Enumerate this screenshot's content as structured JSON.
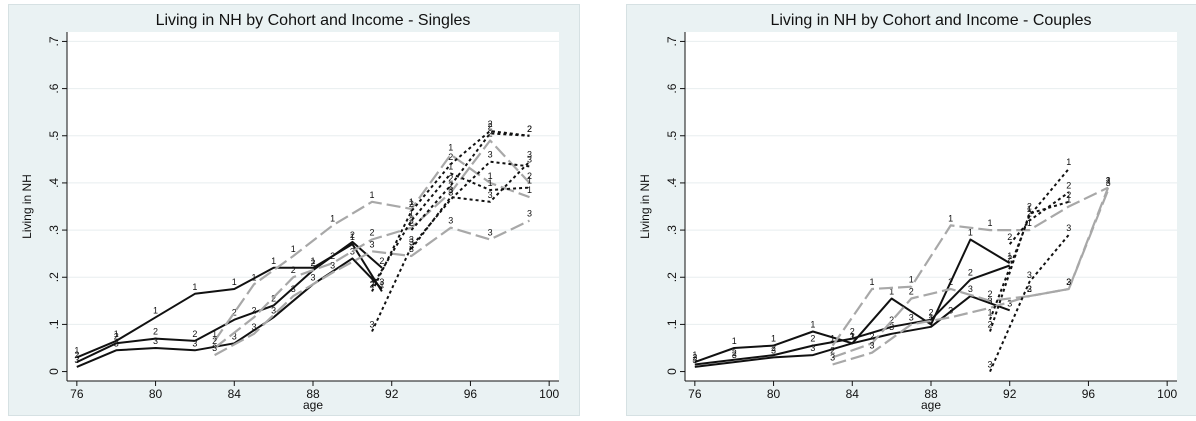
{
  "chart_data": [
    {
      "type": "line",
      "title": "Living in NH by Cohort and Income - Singles",
      "xlabel": "age",
      "ylabel": "Living in NH",
      "xlim": [
        75.5,
        100.5
      ],
      "ylim": [
        -0.02,
        0.72
      ],
      "xticks": [
        "76",
        "80",
        "84",
        "88",
        "92",
        "96",
        "100"
      ],
      "yticks": [
        "0",
        ".1",
        ".2",
        ".3",
        ".4",
        ".5",
        ".6",
        ".7"
      ],
      "grid": true,
      "series": [
        {
          "cohort": 1,
          "income": "1",
          "points": [
            [
              76,
              0.03
            ],
            [
              78,
              0.065
            ],
            [
              80,
              0.115
            ],
            [
              82,
              0.165
            ],
            [
              84,
              0.175
            ],
            [
              86,
              0.22
            ],
            [
              88,
              0.22
            ],
            [
              90,
              0.27
            ],
            [
              91.5,
              0.17
            ]
          ]
        },
        {
          "cohort": 1,
          "income": "2",
          "points": [
            [
              76,
              0.02
            ],
            [
              78,
              0.06
            ],
            [
              80,
              0.07
            ],
            [
              82,
              0.065
            ],
            [
              84,
              0.11
            ],
            [
              86,
              0.14
            ],
            [
              88,
              0.215
            ],
            [
              90,
              0.275
            ],
            [
              91.5,
              0.22
            ]
          ]
        },
        {
          "cohort": 1,
          "income": "3",
          "points": [
            [
              76,
              0.01
            ],
            [
              78,
              0.045
            ],
            [
              80,
              0.05
            ],
            [
              82,
              0.045
            ],
            [
              84,
              0.06
            ],
            [
              86,
              0.115
            ],
            [
              88,
              0.185
            ],
            [
              90,
              0.24
            ],
            [
              91.5,
              0.175
            ]
          ]
        },
        {
          "cohort": 2,
          "income": "1",
          "points": [
            [
              83,
              0.065
            ],
            [
              85,
              0.185
            ],
            [
              87,
              0.245
            ],
            [
              89,
              0.31
            ],
            [
              91,
              0.36
            ],
            [
              93,
              0.345
            ],
            [
              95,
              0.46
            ],
            [
              97,
              0.4
            ],
            [
              99,
              0.37
            ]
          ]
        },
        {
          "cohort": 2,
          "income": "2",
          "points": [
            [
              83,
              0.05
            ],
            [
              85,
              0.115
            ],
            [
              87,
              0.2
            ],
            [
              89,
              0.23
            ],
            [
              91,
              0.28
            ],
            [
              93,
              0.305
            ],
            [
              95,
              0.38
            ],
            [
              97,
              0.49
            ],
            [
              99,
              0.4
            ]
          ]
        },
        {
          "cohort": 2,
          "income": "3",
          "points": [
            [
              83,
              0.035
            ],
            [
              85,
              0.08
            ],
            [
              87,
              0.16
            ],
            [
              89,
              0.21
            ],
            [
              91,
              0.255
            ],
            [
              93,
              0.245
            ],
            [
              95,
              0.305
            ],
            [
              97,
              0.28
            ],
            [
              99,
              0.32
            ]
          ]
        },
        {
          "cohort": 3,
          "income": "1",
          "points": [
            [
              91,
              0.18
            ],
            [
              93,
              0.32
            ],
            [
              95,
              0.42
            ],
            [
              97,
              0.385
            ],
            [
              99,
              0.39
            ]
          ]
        },
        {
          "cohort": 3,
          "income": "2",
          "points": [
            [
              91,
              0.17
            ],
            [
              93,
              0.34
            ],
            [
              95,
              0.44
            ],
            [
              97,
              0.51
            ],
            [
              99,
              0.5
            ]
          ]
        },
        {
          "cohort": 3,
          "income": "3",
          "points": [
            [
              91,
              0.085
            ],
            [
              93,
              0.265
            ],
            [
              95,
              0.365
            ],
            [
              97,
              0.445
            ],
            [
              99,
              0.435
            ]
          ]
        },
        {
          "cohort": 4,
          "income": "2",
          "points": [
            [
              93,
              0.3
            ],
            [
              95,
              0.395
            ],
            [
              97,
              0.505
            ],
            [
              99,
              0.5
            ]
          ]
        },
        {
          "cohort": 4,
          "income": "3",
          "points": [
            [
              93,
              0.26
            ],
            [
              95,
              0.37
            ],
            [
              97,
              0.36
            ],
            [
              99,
              0.445
            ]
          ]
        }
      ]
    },
    {
      "type": "line",
      "title": "Living in NH by Cohort and Income - Couples",
      "xlabel": "age",
      "ylabel": "Living in NH",
      "xlim": [
        75.5,
        100.5
      ],
      "ylim": [
        -0.02,
        0.72
      ],
      "xticks": [
        "76",
        "80",
        "84",
        "88",
        "92",
        "96",
        "100"
      ],
      "yticks": [
        "0",
        ".1",
        ".2",
        ".3",
        ".4",
        ".5",
        ".6",
        ".7"
      ],
      "grid": true,
      "series": [
        {
          "cohort": 1,
          "income": "1",
          "points": [
            [
              76,
              0.02
            ],
            [
              78,
              0.05
            ],
            [
              80,
              0.055
            ],
            [
              82,
              0.085
            ],
            [
              84,
              0.06
            ],
            [
              86,
              0.155
            ],
            [
              88,
              0.1
            ],
            [
              90,
              0.28
            ],
            [
              92,
              0.23
            ]
          ]
        },
        {
          "cohort": 1,
          "income": "2",
          "points": [
            [
              76,
              0.015
            ],
            [
              78,
              0.025
            ],
            [
              80,
              0.035
            ],
            [
              82,
              0.055
            ],
            [
              84,
              0.07
            ],
            [
              86,
              0.095
            ],
            [
              88,
              0.11
            ],
            [
              90,
              0.195
            ],
            [
              92,
              0.225
            ]
          ]
        },
        {
          "cohort": 1,
          "income": "3",
          "points": [
            [
              76,
              0.01
            ],
            [
              78,
              0.02
            ],
            [
              80,
              0.03
            ],
            [
              82,
              0.035
            ],
            [
              84,
              0.06
            ],
            [
              86,
              0.08
            ],
            [
              88,
              0.095
            ],
            [
              90,
              0.16
            ],
            [
              92,
              0.13
            ]
          ]
        },
        {
          "cohort": 2,
          "income": "1",
          "points": [
            [
              83,
              0.055
            ],
            [
              85,
              0.175
            ],
            [
              87,
              0.18
            ],
            [
              89,
              0.31
            ],
            [
              91,
              0.3
            ],
            [
              93,
              0.3
            ],
            [
              95,
              0.35
            ],
            [
              97,
              0.39
            ]
          ]
        },
        {
          "cohort": 2,
          "income": "2",
          "points": [
            [
              83,
              0.03
            ],
            [
              85,
              0.06
            ],
            [
              87,
              0.155
            ],
            [
              89,
              0.175
            ],
            [
              91,
              0.15
            ],
            [
              93,
              0.16
            ],
            [
              95,
              0.175
            ],
            [
              97,
              0.39
            ]
          ]
        },
        {
          "cohort": 2,
          "income": "3",
          "points": [
            [
              83,
              0.015
            ],
            [
              85,
              0.04
            ],
            [
              87,
              0.1
            ],
            [
              89,
              0.115
            ],
            [
              91,
              0.135
            ],
            [
              93,
              0.16
            ],
            [
              95,
              0.175
            ],
            [
              97,
              0.385
            ]
          ]
        },
        {
          "cohort": 3,
          "income": "1",
          "points": [
            [
              91,
              0.11
            ],
            [
              93,
              0.33
            ],
            [
              95,
              0.43
            ]
          ]
        },
        {
          "cohort": 3,
          "income": "2",
          "points": [
            [
              91,
              0.085
            ],
            [
              93,
              0.335
            ],
            [
              95,
              0.36
            ]
          ]
        },
        {
          "cohort": 3,
          "income": "3",
          "points": [
            [
              91,
              0.0
            ],
            [
              93,
              0.19
            ],
            [
              95,
              0.29
            ]
          ]
        },
        {
          "cohort": 4,
          "income": "2",
          "points": [
            [
              92,
              0.27
            ],
            [
              93,
              0.32
            ],
            [
              95,
              0.38
            ]
          ]
        }
      ]
    }
  ]
}
